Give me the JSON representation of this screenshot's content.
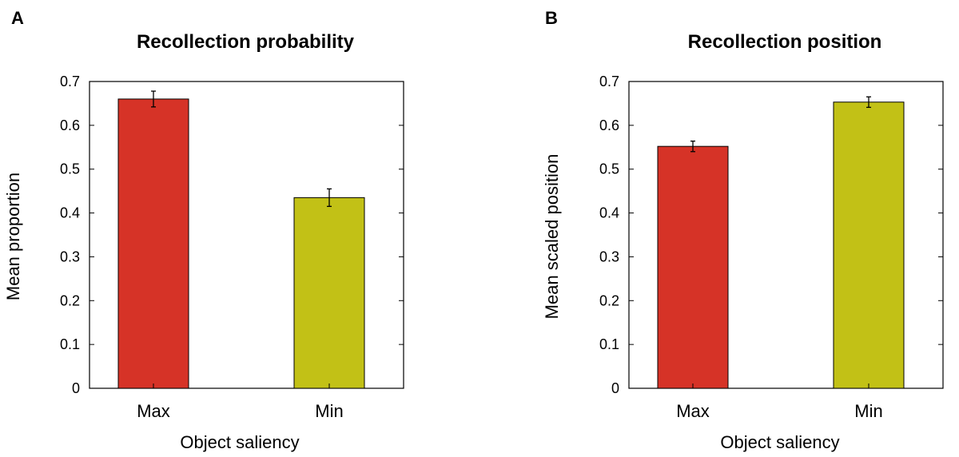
{
  "chart_data": [
    {
      "panel": "A",
      "type": "bar",
      "title": "Recollection probability",
      "xlabel": "Object saliency",
      "ylabel": "Mean proportion",
      "categories": [
        "Max",
        "Min"
      ],
      "values": [
        0.66,
        0.435
      ],
      "errors": [
        0.018,
        0.02
      ],
      "colors": [
        "#d63327",
        "#c2c116"
      ],
      "ylim": [
        0,
        0.7
      ],
      "yticks": [
        "0",
        "0.1",
        "0.2",
        "0.3",
        "0.4",
        "0.5",
        "0.6",
        "0.7"
      ]
    },
    {
      "panel": "B",
      "type": "bar",
      "title": "Recollection position",
      "xlabel": "Object saliency",
      "ylabel": "Mean scaled position",
      "categories": [
        "Max",
        "Min"
      ],
      "values": [
        0.552,
        0.653
      ],
      "errors": [
        0.012,
        0.012
      ],
      "colors": [
        "#d63327",
        "#c2c116"
      ],
      "ylim": [
        0,
        0.7
      ],
      "yticks": [
        "0",
        "0.1",
        "0.2",
        "0.3",
        "0.4",
        "0.5",
        "0.6",
        "0.7"
      ]
    }
  ]
}
